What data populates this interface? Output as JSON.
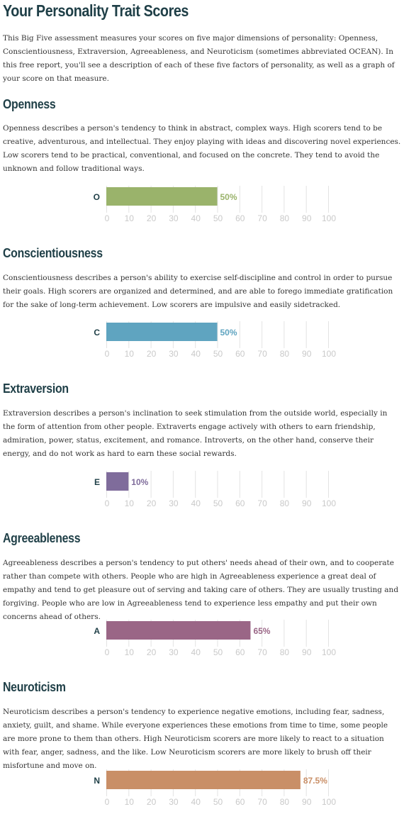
{
  "title": "Your Personality Trait Scores",
  "intro": "This Big Five assessment measures your scores on five major dimensions of personality: Openness, Conscientiousness, Extraversion, Agreeableness, and Neuroticism (sometimes abbreviated OCEAN). In this free report, you'll see a description of each of these five factors of personality, as well as a graph of your score on that measure.",
  "traits": [
    {
      "name": "Openness",
      "description": "Openness describes a person's tendency to think in abstract, complex ways. High scorers tend to be creative, adventurous, and intellectual. They enjoy playing with ideas and discovering novel experiences. Low scorers tend to be practical, conventional, and focused on the concrete. They tend to avoid the unknown and follow traditional ways."
    },
    {
      "name": "Conscientiousness",
      "description": "Conscientiousness describes a person's ability to exercise self-discipline and control in order to pursue their goals. High scorers are organized and determined, and are able to forego immediate gratification for the sake of long-term achievement. Low scorers are impulsive and easily sidetracked."
    },
    {
      "name": "Extraversion",
      "description": "Extraversion describes a person's inclination to seek stimulation from the outside world, especially in the form of attention from other people. Extraverts engage actively with others to earn friendship, admiration, power, status, excitement, and romance. Introverts, on the other hand, conserve their energy, and do not work as hard to earn these social rewards."
    },
    {
      "name": "Agreeableness",
      "description": "Agreeableness describes a person's tendency to put others' needs ahead of their own, and to cooperate rather than compete with others. People who are high in Agreeableness experience a great deal of empathy and tend to get pleasure out of serving and taking care of others. They are usually trusting and forgiving. People who are low in Agreeableness tend to experience less empathy and put their own concerns ahead of others."
    },
    {
      "name": "Neuroticism",
      "description": "Neuroticism describes a person's tendency to experience negative emotions, including fear, sadness, anxiety, guilt, and shame. While everyone experiences these emotions from time to time, some people are more prone to them than others. High Neuroticism scorers are more likely to react to a situation with fear, anger, sadness, and the like. Low Neuroticism scorers are more likely to brush off their misfortune and move on."
    }
  ],
  "chart_data": [
    {
      "type": "bar",
      "categories": [
        "O"
      ],
      "values": [
        50
      ],
      "value_labels": [
        "50%"
      ],
      "xlim": [
        0,
        100
      ],
      "ticks": [
        "0",
        "10",
        "20",
        "30",
        "40",
        "50",
        "60",
        "70",
        "80",
        "90",
        "100"
      ],
      "color": "#9ab36b",
      "grid": true
    },
    {
      "type": "bar",
      "categories": [
        "C"
      ],
      "values": [
        50
      ],
      "value_labels": [
        "50%"
      ],
      "xlim": [
        0,
        100
      ],
      "ticks": [
        "0",
        "10",
        "20",
        "30",
        "40",
        "50",
        "60",
        "70",
        "80",
        "90",
        "100"
      ],
      "color": "#5fa4c0",
      "grid": true
    },
    {
      "type": "bar",
      "categories": [
        "E"
      ],
      "values": [
        10
      ],
      "value_labels": [
        "10%"
      ],
      "xlim": [
        0,
        100
      ],
      "ticks": [
        "0",
        "10",
        "20",
        "30",
        "40",
        "50",
        "60",
        "70",
        "80",
        "90",
        "100"
      ],
      "color": "#7f6c9b",
      "grid": true
    },
    {
      "type": "bar",
      "categories": [
        "A"
      ],
      "values": [
        65
      ],
      "value_labels": [
        "65%"
      ],
      "xlim": [
        0,
        100
      ],
      "ticks": [
        "0",
        "10",
        "20",
        "30",
        "40",
        "50",
        "60",
        "70",
        "80",
        "90",
        "100"
      ],
      "color": "#9a6686",
      "grid": true
    },
    {
      "type": "bar",
      "categories": [
        "N"
      ],
      "values": [
        87.5
      ],
      "value_labels": [
        "87.5%"
      ],
      "xlim": [
        0,
        100
      ],
      "ticks": [
        "0",
        "10",
        "20",
        "30",
        "40",
        "50",
        "60",
        "70",
        "80",
        "90",
        "100"
      ],
      "color": "#c98f67",
      "grid": true
    }
  ]
}
